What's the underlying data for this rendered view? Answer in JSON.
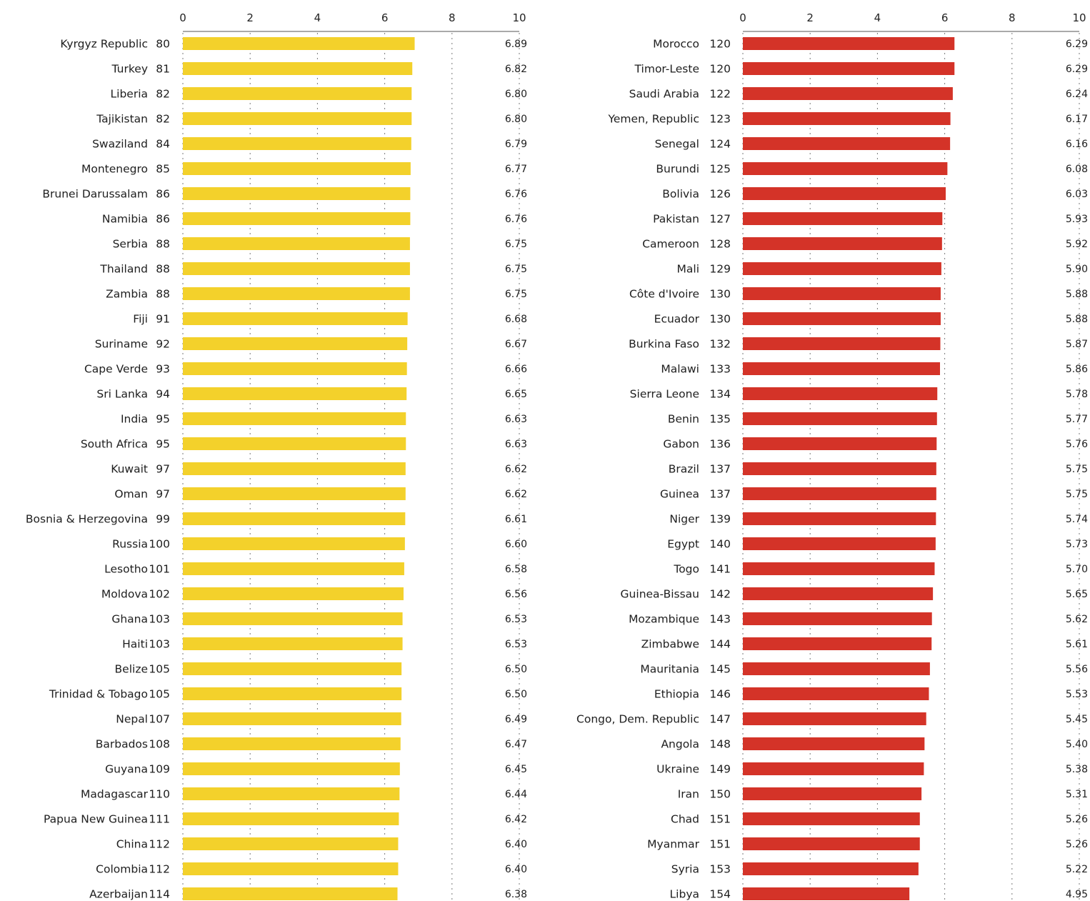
{
  "chart_data": [
    {
      "type": "bar",
      "orientation": "horizontal",
      "xlim": [
        0,
        10
      ],
      "xticks": [
        "0",
        "2",
        "4",
        "6",
        "8",
        "10"
      ],
      "grid": true,
      "bar_color": "#f3d12b",
      "title": "",
      "xlabel": "",
      "ylabel": "",
      "categories": [
        "Kyrgyz Republic",
        "Turkey",
        "Liberia",
        "Tajikistan",
        "Swaziland",
        "Montenegro",
        "Brunei Darussalam",
        "Namibia",
        "Serbia",
        "Thailand",
        "Zambia",
        "Fiji",
        "Suriname",
        "Cape Verde",
        "Sri Lanka",
        "India",
        "South Africa",
        "Kuwait",
        "Oman",
        "Bosnia & Herzegovina",
        "Russia",
        "Lesotho",
        "Moldova",
        "Ghana",
        "Haiti",
        "Belize",
        "Trinidad & Tobago",
        "Nepal",
        "Barbados",
        "Guyana",
        "Madagascar",
        "Papua New Guinea",
        "China",
        "Colombia",
        "Azerbaijan"
      ],
      "ranks": [
        "80",
        "81",
        "82",
        "82",
        "84",
        "85",
        "86",
        "86",
        "88",
        "88",
        "88",
        "91",
        "92",
        "93",
        "94",
        "95",
        "95",
        "97",
        "97",
        "99",
        "100",
        "101",
        "102",
        "103",
        "103",
        "105",
        "105",
        "107",
        "108",
        "109",
        "110",
        "111",
        "112",
        "112",
        "114"
      ],
      "values": [
        6.89,
        6.82,
        6.8,
        6.8,
        6.79,
        6.77,
        6.76,
        6.76,
        6.75,
        6.75,
        6.75,
        6.68,
        6.67,
        6.66,
        6.65,
        6.63,
        6.63,
        6.62,
        6.62,
        6.61,
        6.6,
        6.58,
        6.56,
        6.53,
        6.53,
        6.5,
        6.5,
        6.49,
        6.47,
        6.45,
        6.44,
        6.42,
        6.4,
        6.4,
        6.38
      ],
      "value_labels": [
        "6.89",
        "6.82",
        "6.80",
        "6.80",
        "6.79",
        "6.77",
        "6.76",
        "6.76",
        "6.75",
        "6.75",
        "6.75",
        "6.68",
        "6.67",
        "6.66",
        "6.65",
        "6.63",
        "6.63",
        "6.62",
        "6.62",
        "6.61",
        "6.60",
        "6.58",
        "6.56",
        "6.53",
        "6.53",
        "6.50",
        "6.50",
        "6.49",
        "6.47",
        "6.45",
        "6.44",
        "6.42",
        "6.40",
        "6.40",
        "6.38"
      ]
    },
    {
      "type": "bar",
      "orientation": "horizontal",
      "xlim": [
        0,
        10
      ],
      "xticks": [
        "0",
        "2",
        "4",
        "6",
        "8",
        "10"
      ],
      "grid": true,
      "bar_color": "#d43328",
      "title": "",
      "xlabel": "",
      "ylabel": "",
      "categories": [
        "Morocco",
        "Timor-Leste",
        "Saudi Arabia",
        "Yemen, Republic",
        "Senegal",
        "Burundi",
        "Bolivia",
        "Pakistan",
        "Cameroon",
        "Mali",
        "Côte d'Ivoire",
        "Ecuador",
        "Burkina Faso",
        "Malawi",
        "Sierra Leone",
        "Benin",
        "Gabon",
        "Brazil",
        "Guinea",
        "Niger",
        "Egypt",
        "Togo",
        "Guinea-Bissau",
        "Mozambique",
        "Zimbabwe",
        "Mauritania",
        "Ethiopia",
        "Congo, Dem. Republic",
        "Angola",
        "Ukraine",
        "Iran",
        "Chad",
        "Myanmar",
        "Syria",
        "Libya"
      ],
      "ranks": [
        "120",
        "120",
        "122",
        "123",
        "124",
        "125",
        "126",
        "127",
        "128",
        "129",
        "130",
        "130",
        "132",
        "133",
        "134",
        "135",
        "136",
        "137",
        "137",
        "139",
        "140",
        "141",
        "142",
        "143",
        "144",
        "145",
        "146",
        "147",
        "148",
        "149",
        "150",
        "151",
        "151",
        "153",
        "154"
      ],
      "values": [
        6.29,
        6.29,
        6.24,
        6.17,
        6.16,
        6.08,
        6.03,
        5.93,
        5.92,
        5.9,
        5.88,
        5.88,
        5.87,
        5.86,
        5.78,
        5.77,
        5.76,
        5.75,
        5.75,
        5.74,
        5.73,
        5.7,
        5.65,
        5.62,
        5.61,
        5.56,
        5.53,
        5.45,
        5.4,
        5.38,
        5.31,
        5.26,
        5.26,
        5.22,
        4.95
      ],
      "value_labels": [
        "6.29",
        "6.29",
        "6.24",
        "6.17",
        "6.16",
        "6.08",
        "6.03",
        "5.93",
        "5.92",
        "5.90",
        "5.88",
        "5.88",
        "5.87",
        "5.86",
        "5.78",
        "5.77",
        "5.76",
        "5.75",
        "5.75",
        "5.74",
        "5.73",
        "5.70",
        "5.65",
        "5.62",
        "5.61",
        "5.56",
        "5.53",
        "5.45",
        "5.40",
        "5.38",
        "5.31",
        "5.26",
        "5.26",
        "5.22",
        "4.95"
      ]
    }
  ]
}
